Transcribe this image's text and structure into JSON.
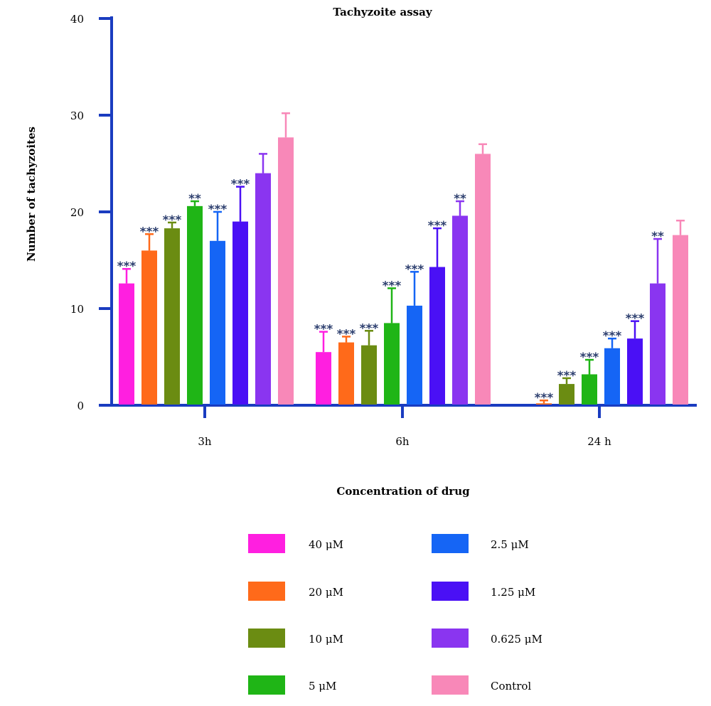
{
  "chart_data": {
    "type": "bar",
    "title": "Tachyzoite assay",
    "xlabel": "Concentration of drug",
    "ylabel": "Number of tachyzoites",
    "ylim": [
      0,
      40
    ],
    "yticks": [
      0,
      10,
      20,
      30,
      40
    ],
    "categories": [
      "3h",
      "6h",
      "24 h"
    ],
    "series": [
      {
        "name": "40 μM",
        "color": "#ff1fe0",
        "values": [
          12.6,
          5.5,
          0
        ],
        "errors": [
          1.5,
          2.1,
          0
        ],
        "significance": [
          "***",
          "***",
          ""
        ]
      },
      {
        "name": "20 μM",
        "color": "#ff6a1a",
        "values": [
          16.0,
          6.5,
          0.2
        ],
        "errors": [
          1.7,
          0.6,
          0.3
        ],
        "significance": [
          "***",
          "***",
          "***"
        ]
      },
      {
        "name": "10 μM",
        "color": "#6b8c12",
        "values": [
          18.3,
          6.2,
          2.2
        ],
        "errors": [
          0.6,
          1.5,
          0.6
        ],
        "significance": [
          "***",
          "***",
          "***"
        ]
      },
      {
        "name": "5 μM",
        "color": "#1fb516",
        "values": [
          20.6,
          8.5,
          3.2
        ],
        "errors": [
          0.5,
          3.6,
          1.5
        ],
        "significance": [
          "**",
          "***",
          "***"
        ]
      },
      {
        "name": "2.5 μM",
        "color": "#1565f5",
        "values": [
          17.0,
          10.3,
          5.9
        ],
        "errors": [
          3.0,
          3.5,
          1.0
        ],
        "significance": [
          "***",
          "***",
          "***"
        ]
      },
      {
        "name": "1.25 μM",
        "color": "#4a10f5",
        "values": [
          19.0,
          14.3,
          6.9
        ],
        "errors": [
          3.6,
          4.0,
          1.8
        ],
        "significance": [
          "***",
          "***",
          "***"
        ]
      },
      {
        "name": "0.625 μM",
        "color": "#8a35f0",
        "values": [
          24.0,
          19.6,
          12.6
        ],
        "errors": [
          2.0,
          1.5,
          4.6
        ],
        "significance": [
          "",
          "**",
          "**"
        ]
      },
      {
        "name": "Control",
        "color": "#f888b8",
        "values": [
          27.7,
          26.0,
          17.6
        ],
        "errors": [
          2.5,
          1.0,
          1.5
        ],
        "significance": [
          "",
          "",
          ""
        ]
      }
    ],
    "axis_color": "#1a3cc0",
    "grid": false,
    "legend_placement": "bottom"
  }
}
